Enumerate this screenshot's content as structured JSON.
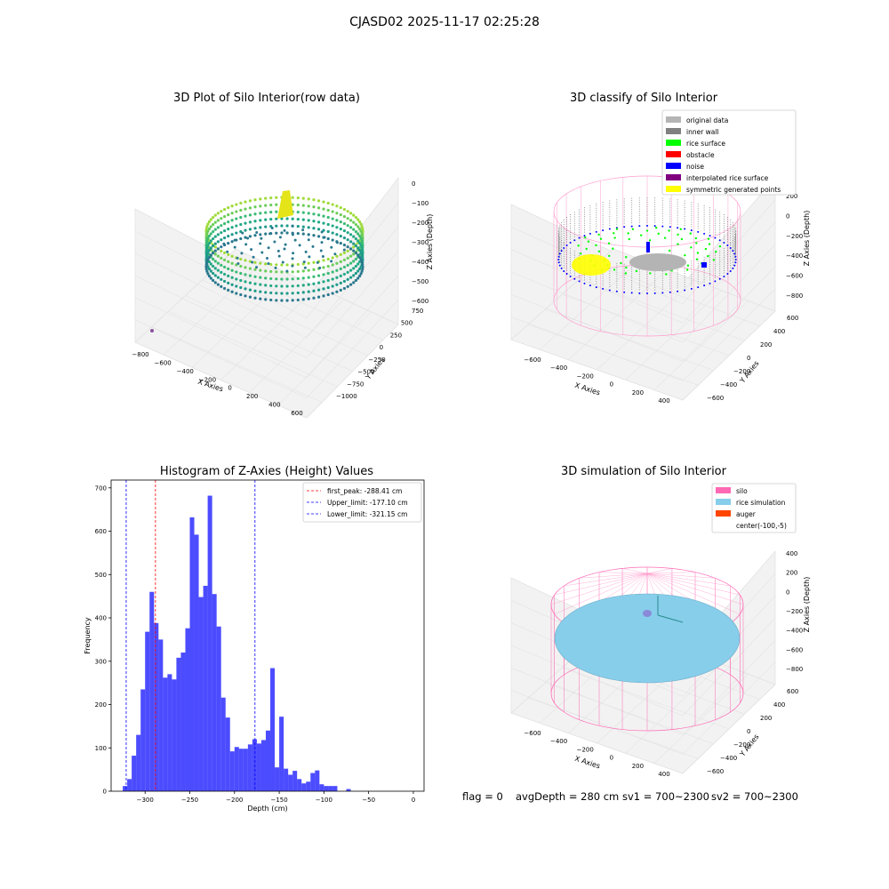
{
  "suptitle": "CJASD02 2025-11-17 02:25:28",
  "panels": {
    "raw": {
      "title": "3D Plot of Silo Interior(row data)",
      "xlabel": "X Axies",
      "ylabel": "Y Axies",
      "zlabel": "Z Axies (Depth)",
      "xticks": [
        "−800",
        "−600",
        "−400",
        "−200",
        "0",
        "200",
        "400",
        "600"
      ],
      "yticks": [
        "750",
        "500",
        "250",
        "0",
        "−250",
        "−500",
        "−750",
        "−1000"
      ],
      "zticks": [
        "0",
        "−100",
        "−200",
        "−300",
        "−400",
        "−500",
        "−600"
      ]
    },
    "classify": {
      "title": "3D classify of Silo Interior",
      "xlabel": "X Axies",
      "ylabel": "Y Axies",
      "zlabel": "Z Axies (Depth)",
      "xticks": [
        "−600",
        "−400",
        "−200",
        "0",
        "200",
        "400"
      ],
      "yticks": [
        "600",
        "400",
        "200",
        "0",
        "−200",
        "−400",
        "−600"
      ],
      "zticks": [
        "200",
        "0",
        "−200",
        "−400",
        "−600",
        "−800"
      ],
      "legend": [
        {
          "label": "original data",
          "color": "#b4b4b4"
        },
        {
          "label": "inner wall",
          "color": "#808080"
        },
        {
          "label": "rice surface",
          "color": "#00ff00"
        },
        {
          "label": "obstacle",
          "color": "#ff0000"
        },
        {
          "label": "noise",
          "color": "#0000ff"
        },
        {
          "label": "interpolated rice surface",
          "color": "#800080"
        },
        {
          "label": "symmetric generated points",
          "color": "#ffff00"
        }
      ]
    },
    "simulation": {
      "title": "3D simulation of Silo Interior",
      "xlabel": "X Axies",
      "ylabel": "Y Axies",
      "zlabel": "Z Axies (Depth)",
      "xticks": [
        "−600",
        "−400",
        "−200",
        "0",
        "200",
        "400"
      ],
      "yticks": [
        "600",
        "400",
        "200",
        "0",
        "−200",
        "−400",
        "−600"
      ],
      "zticks": [
        "400",
        "200",
        "0",
        "−200",
        "−400",
        "−600",
        "−800"
      ],
      "legend": [
        {
          "label": "silo",
          "color": "#ff69b4"
        },
        {
          "label": "rice simulation",
          "color": "#87ceeb"
        },
        {
          "label": "auger",
          "color": "#ff4500"
        },
        {
          "label": "center(-100,-5)",
          "color": ""
        }
      ]
    }
  },
  "chart_data": {
    "type": "bar",
    "title": "Histogram of Z-Axies (Height) Values",
    "xlabel": "Depth (cm)",
    "ylabel": "Frequency",
    "xlim": [
      -338,
      12
    ],
    "ylim": [
      0,
      718
    ],
    "xticks": [
      -300,
      -250,
      -200,
      -150,
      -100,
      -50,
      0
    ],
    "xtick_labels": [
      "−300",
      "−250",
      "−200",
      "−150",
      "−100",
      "−50",
      "0"
    ],
    "yticks": [
      0,
      100,
      200,
      300,
      400,
      500,
      600,
      700
    ],
    "bar_color": "#0000ff",
    "bin_start": -325,
    "bin_width": 5,
    "values": [
      12,
      28,
      82,
      130,
      235,
      368,
      460,
      388,
      350,
      262,
      270,
      258,
      308,
      320,
      376,
      632,
      592,
      448,
      474,
      682,
      455,
      380,
      216,
      170,
      92,
      102,
      98,
      98,
      108,
      120,
      110,
      118,
      140,
      284,
      55,
      172,
      52,
      38,
      47,
      28,
      18,
      22,
      42,
      48,
      16,
      12,
      12,
      12,
      0,
      0,
      5
    ],
    "vlines": [
      {
        "label": "first_peak: -288.41 cm",
        "x": -288.41,
        "color": "#ff0000"
      },
      {
        "label": "Upper_limit: -177.10 cm",
        "x": -177.1,
        "color": "#0000ff"
      },
      {
        "label": "Lower_limit: -321.15 cm",
        "x": -321.15,
        "color": "#0000ff"
      }
    ],
    "legend_position": "upper right"
  },
  "status": {
    "flag": "flag = 0",
    "avg": "avgDepth = 280 cm",
    "sv1": "sv1 = 700~2300",
    "sv2": "sv2 = 700~2300"
  }
}
